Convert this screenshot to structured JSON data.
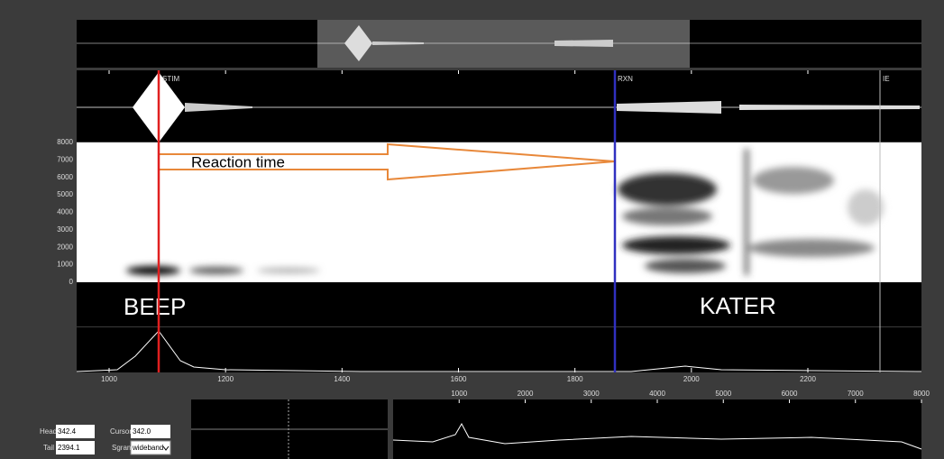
{
  "waveform_panel": {
    "markers": [
      "STIM",
      "RXN",
      "IE"
    ]
  },
  "spectrogram": {
    "y_labels": [
      8000,
      7000,
      6000,
      5000,
      4000,
      3000,
      2000,
      1000,
      0
    ],
    "annotation": "Reaction time"
  },
  "transcript": {
    "labels": [
      "BEEP",
      "KATER"
    ]
  },
  "time_axis": {
    "ticks": [
      1000,
      1200,
      1400,
      1600,
      1800,
      2000,
      2200
    ]
  },
  "frequency_axis": {
    "ticks": [
      1000,
      2000,
      3000,
      4000,
      5000,
      6000,
      7000,
      8000
    ]
  },
  "controls": {
    "head_label": "Head",
    "head_value": "342.4",
    "tail_label": "Tail",
    "tail_value": "2394.1",
    "cursor_label": "Cursor",
    "cursor_value": "342.0",
    "sgram_label": "Sgram",
    "sgram_value": "wideband"
  }
}
